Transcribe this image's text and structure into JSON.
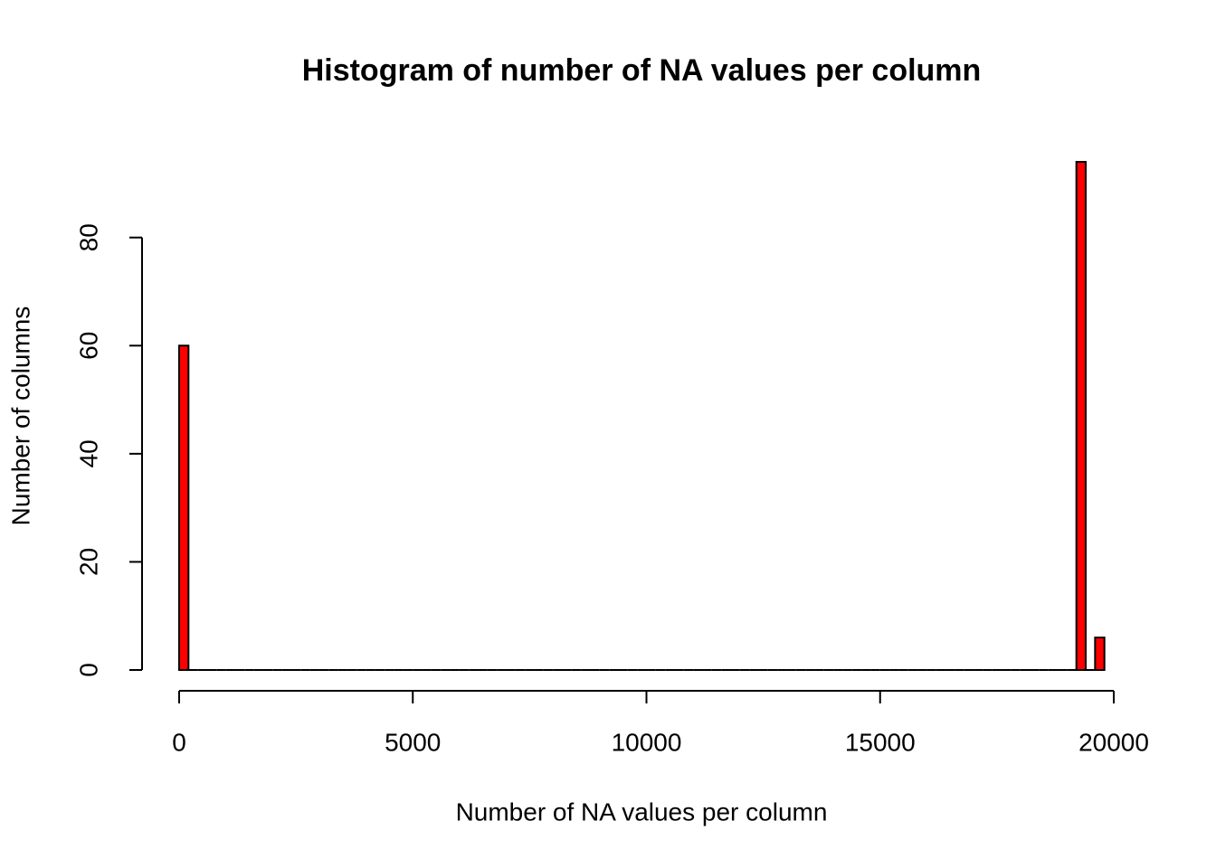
{
  "chart_data": {
    "type": "histogram",
    "title": "Histogram of number of NA values per column",
    "x_label": "Number of NA values per column",
    "y_label": "Number of columns",
    "bins": [
      0,
      200,
      400,
      600,
      800,
      1000,
      1200,
      1400,
      1600,
      1800,
      2000,
      2200,
      2400,
      2600,
      2800,
      3000,
      3200,
      3400,
      3600,
      3800,
      4000,
      4200,
      4400,
      4600,
      4800,
      5000,
      5200,
      5400,
      5600,
      5800,
      6000,
      6200,
      6400,
      6600,
      6800,
      7000,
      7200,
      7400,
      7600,
      7800,
      8000,
      8200,
      8400,
      8600,
      8800,
      9000,
      9200,
      9400,
      9600,
      9800,
      10000,
      10200,
      10400,
      10600,
      10800,
      11000,
      11200,
      11400,
      11600,
      11800,
      12000,
      12200,
      12400,
      12600,
      12800,
      13000,
      13200,
      13400,
      13600,
      13800,
      14000,
      14200,
      14400,
      14600,
      14800,
      15000,
      15200,
      15400,
      15600,
      15800,
      16000,
      16200,
      16400,
      16600,
      16800,
      17000,
      17200,
      17400,
      17600,
      17800,
      18000,
      18200,
      18400,
      18600,
      18800,
      19000,
      19200,
      19400,
      19600,
      19800
    ],
    "counts": [
      60,
      0,
      0,
      0,
      0,
      0,
      0,
      0,
      0,
      0,
      0,
      0,
      0,
      0,
      0,
      0,
      0,
      0,
      0,
      0,
      0,
      0,
      0,
      0,
      0,
      0,
      0,
      0,
      0,
      0,
      0,
      0,
      0,
      0,
      0,
      0,
      0,
      0,
      0,
      0,
      0,
      0,
      0,
      0,
      0,
      0,
      0,
      0,
      0,
      0,
      0,
      0,
      0,
      0,
      0,
      0,
      0,
      0,
      0,
      0,
      0,
      0,
      0,
      0,
      0,
      0,
      0,
      0,
      0,
      0,
      0,
      0,
      0,
      0,
      0,
      0,
      0,
      0,
      0,
      0,
      0,
      0,
      0,
      0,
      0,
      0,
      0,
      0,
      0,
      0,
      0,
      0,
      0,
      0,
      0,
      0,
      94,
      0,
      6
    ],
    "color": "#ff0000",
    "xlim": [
      0,
      20000
    ],
    "xticks": [
      0,
      5000,
      10000,
      15000,
      20000
    ],
    "ylim": [
      0,
      94
    ],
    "yticks": [
      0,
      20,
      40,
      60,
      80
    ]
  }
}
